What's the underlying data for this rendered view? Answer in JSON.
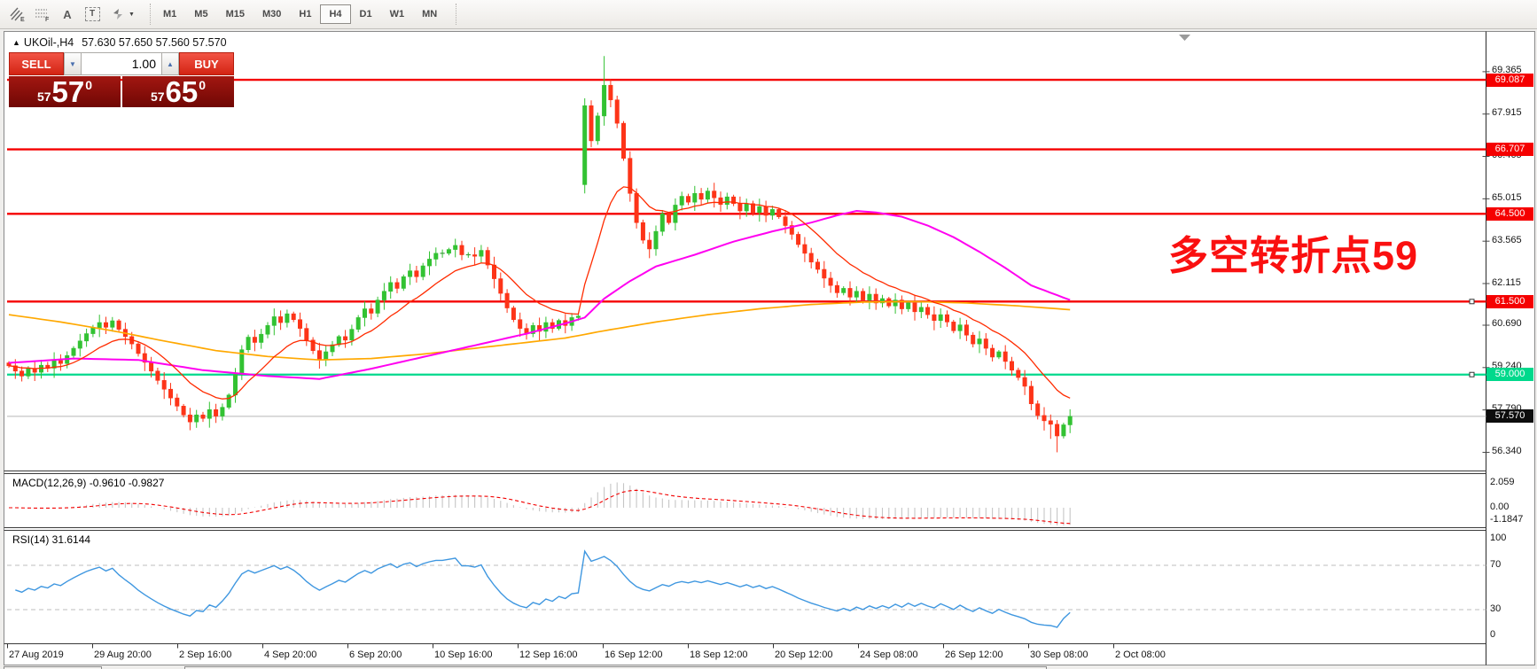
{
  "toolbar": {
    "tools": [
      {
        "name": "crosshatch-pattern-tool",
        "label": "E"
      },
      {
        "name": "grid-pattern-tool",
        "label": "F"
      },
      {
        "name": "text-label-tool",
        "label": "A"
      },
      {
        "name": "text-box-tool",
        "label": "T"
      },
      {
        "name": "arrow-objects-tool",
        "label": ""
      }
    ],
    "timeframes": [
      "M1",
      "M5",
      "M15",
      "M30",
      "H1",
      "H4",
      "D1",
      "W1",
      "MN"
    ],
    "active_timeframe": "H4"
  },
  "icons": {
    "symbol_marker": "▲",
    "spin_down": "▼",
    "spin_up": "▲",
    "dropdown_caret": "▼"
  },
  "chart": {
    "symbol_tf": "UKOil-,H4",
    "ohlc": "57.630 57.650 57.560 57.570",
    "trade_panel": {
      "sell_label": "SELL",
      "buy_label": "BUY",
      "volume": "1.00",
      "sell_price_small": "57",
      "sell_price_big": "57",
      "sell_price_sup": "0",
      "buy_price_small": "57",
      "buy_price_big": "65",
      "buy_price_sup": "0"
    },
    "annotation": {
      "text": "多空转折点59",
      "color": "#fa1010"
    }
  },
  "macd_panel": {
    "label": "MACD(12,26,9) -0.9610 -0.9827",
    "axis": [
      "2.059",
      "0.00",
      "-1.1847"
    ]
  },
  "rsi_panel": {
    "label": "RSI(14) 31.6144",
    "axis_100": "100",
    "axis_70": "70",
    "axis_30": "30",
    "axis_0": "0"
  },
  "time_axis": [
    "27 Aug 2019",
    "29 Aug 20:00",
    "2 Sep 16:00",
    "4 Sep 20:00",
    "6 Sep 20:00",
    "10 Sep 16:00",
    "12 Sep 16:00",
    "16 Sep 12:00",
    "18 Sep 12:00",
    "20 Sep 12:00",
    "24 Sep 08:00",
    "26 Sep 12:00",
    "30 Sep 08:00",
    "2 Oct 08:00"
  ],
  "price_axis": {
    "plain_ticks": [
      {
        "label": "69.365",
        "price": 69.365
      },
      {
        "label": "67.915",
        "price": 67.915
      },
      {
        "label": "66.465",
        "price": 66.465
      },
      {
        "label": "65.015",
        "price": 65.015
      },
      {
        "label": "63.565",
        "price": 63.565
      },
      {
        "label": "62.115",
        "price": 62.115
      },
      {
        "label": "60.690",
        "price": 60.69
      },
      {
        "label": "59.240",
        "price": 59.24
      },
      {
        "label": "57.790",
        "price": 57.79
      },
      {
        "label": "56.340",
        "price": 56.34
      }
    ],
    "badges": [
      {
        "label": "69.087",
        "price": 69.087,
        "bg": "#f50000"
      },
      {
        "label": "66.707",
        "price": 66.707,
        "bg": "#f50000"
      },
      {
        "label": "64.500",
        "price": 64.5,
        "bg": "#f50000"
      },
      {
        "label": "61.500",
        "price": 61.5,
        "bg": "#f50000"
      },
      {
        "label": "59.000",
        "price": 59.0,
        "bg": "#00d98c"
      },
      {
        "label": "57.570",
        "price": 57.57,
        "bg": "#0d0d0d"
      }
    ]
  },
  "chart_data": {
    "type": "candlestick",
    "symbol": "UKOil",
    "timeframe": "H4",
    "visible_price_range": [
      55.8,
      70.7
    ],
    "first_open": 59.4,
    "closes": [
      59.3,
      59.12,
      58.95,
      59.2,
      59.08,
      59.32,
      59.22,
      59.48,
      59.38,
      59.65,
      59.9,
      60.15,
      60.4,
      60.6,
      60.78,
      60.62,
      60.84,
      60.55,
      60.3,
      60.05,
      59.72,
      59.42,
      59.12,
      58.8,
      58.5,
      58.2,
      57.92,
      57.62,
      57.38,
      57.62,
      57.5,
      57.8,
      57.58,
      57.88,
      58.3,
      59.0,
      59.85,
      60.28,
      60.1,
      60.38,
      60.68,
      60.98,
      60.78,
      61.08,
      60.88,
      60.58,
      60.18,
      59.82,
      59.52,
      59.78,
      60.02,
      60.3,
      60.18,
      60.55,
      60.95,
      61.25,
      61.1,
      61.55,
      61.85,
      62.15,
      61.95,
      62.35,
      62.55,
      62.35,
      62.72,
      62.95,
      63.15,
      63.15,
      63.28,
      63.42,
      63.1,
      63.1,
      63.05,
      63.25,
      62.75,
      62.28,
      61.78,
      61.28,
      60.88,
      60.58,
      60.4,
      60.68,
      60.48,
      60.78,
      60.58,
      60.85,
      60.68,
      60.95,
      61.0,
      68.2,
      67.0,
      67.85,
      68.9,
      68.4,
      67.6,
      66.4,
      65.2,
      64.2,
      63.6,
      63.3,
      63.9,
      64.5,
      64.2,
      64.8,
      65.1,
      64.9,
      65.2,
      65.0,
      65.28,
      65.05,
      64.82,
      65.08,
      64.85,
      64.6,
      64.85,
      64.55,
      64.75,
      64.45,
      64.65,
      64.4,
      64.1,
      63.8,
      63.45,
      63.15,
      62.85,
      62.6,
      62.3,
      62.05,
      61.8,
      61.95,
      61.65,
      61.85,
      61.55,
      61.75,
      61.45,
      61.6,
      61.35,
      61.55,
      61.25,
      61.45,
      61.15,
      61.3,
      61.05,
      60.85,
      61.05,
      60.8,
      60.5,
      60.7,
      60.35,
      60.05,
      60.22,
      59.9,
      59.6,
      59.78,
      59.45,
      59.15,
      58.9,
      58.6,
      58.0,
      57.6,
      57.42,
      57.3,
      56.9,
      57.28,
      57.57
    ],
    "gap": {
      "index": 89,
      "open": 65.5
    },
    "high_overrides": {
      "92": 69.9
    },
    "low_overrides": {
      "161": 56.8,
      "162": 56.34
    },
    "horizontal_lines": [
      {
        "price": 69.087,
        "color": "#f50000",
        "width": 2.4,
        "handles": false
      },
      {
        "price": 66.707,
        "color": "#f50000",
        "width": 2.4,
        "handles": false
      },
      {
        "price": 64.5,
        "color": "#f50000",
        "width": 2.4,
        "handles": false
      },
      {
        "price": 61.5,
        "color": "#f50000",
        "width": 2.4,
        "handles": true
      },
      {
        "price": 59.0,
        "color": "#00d98c",
        "width": 2.2,
        "handles": true
      },
      {
        "price": 57.57,
        "color": "#b8b8b8",
        "width": 1,
        "handles": false
      }
    ],
    "ma_red_period": 13,
    "ma_magenta_waypoints": [
      [
        0,
        59.4
      ],
      [
        10,
        59.55
      ],
      [
        20,
        59.5
      ],
      [
        30,
        59.15
      ],
      [
        40,
        58.95
      ],
      [
        48,
        58.85
      ],
      [
        56,
        59.2
      ],
      [
        64,
        59.6
      ],
      [
        72,
        60.0
      ],
      [
        80,
        60.4
      ],
      [
        86,
        60.75
      ],
      [
        89,
        60.95
      ],
      [
        92,
        61.6
      ],
      [
        96,
        62.2
      ],
      [
        100,
        62.7
      ],
      [
        106,
        63.1
      ],
      [
        112,
        63.55
      ],
      [
        118,
        63.9
      ],
      [
        124,
        64.2
      ],
      [
        128,
        64.45
      ],
      [
        131,
        64.6
      ],
      [
        134,
        64.55
      ],
      [
        138,
        64.4
      ],
      [
        142,
        64.1
      ],
      [
        146,
        63.7
      ],
      [
        150,
        63.2
      ],
      [
        154,
        62.65
      ],
      [
        158,
        62.05
      ],
      [
        161,
        61.8
      ],
      [
        164,
        61.55
      ]
    ],
    "ma_gold_waypoints": [
      [
        0,
        61.05
      ],
      [
        8,
        60.8
      ],
      [
        16,
        60.5
      ],
      [
        24,
        60.15
      ],
      [
        32,
        59.82
      ],
      [
        40,
        59.62
      ],
      [
        48,
        59.5
      ],
      [
        56,
        59.55
      ],
      [
        64,
        59.7
      ],
      [
        72,
        59.9
      ],
      [
        80,
        60.1
      ],
      [
        86,
        60.25
      ],
      [
        92,
        60.5
      ],
      [
        100,
        60.8
      ],
      [
        108,
        61.05
      ],
      [
        116,
        61.25
      ],
      [
        124,
        61.4
      ],
      [
        132,
        61.48
      ],
      [
        140,
        61.5
      ],
      [
        148,
        61.45
      ],
      [
        156,
        61.35
      ],
      [
        164,
        61.22
      ]
    ],
    "macd": {
      "fast": 12,
      "slow": 26,
      "signal": 9,
      "current": -0.961,
      "current_signal": -0.9827,
      "axis_max": 2.059,
      "axis_min": -1.1847
    },
    "rsi": {
      "period": 14,
      "current": 31.6144,
      "levels": [
        70,
        30
      ]
    },
    "colors": {
      "up": "#32c232",
      "down": "#fd3418",
      "ma_red": "#ff2b00",
      "ma_magenta": "#ff00f0",
      "ma_gold": "#ffa800",
      "macd_hist": "#c6c6c6",
      "macd_signal": "#f20000",
      "rsi_line": "#3f97e0"
    }
  }
}
